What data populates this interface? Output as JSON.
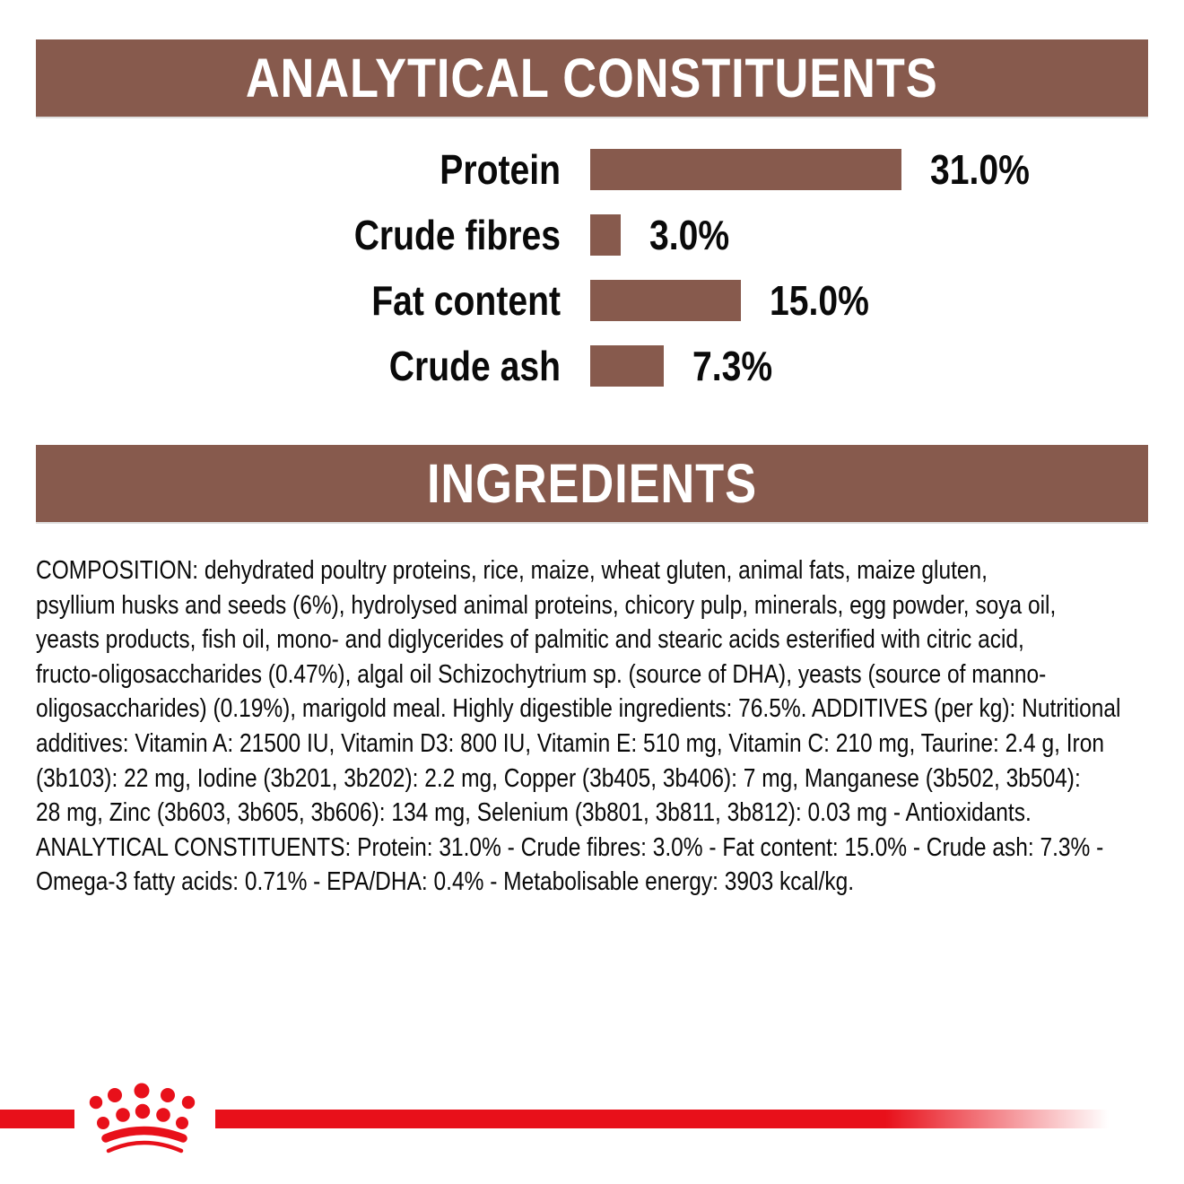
{
  "colors": {
    "background": "#ffffff",
    "brown": "#875a4d",
    "red": "#e8101a",
    "text": "#0a0a0a",
    "header_text": "#ffffff"
  },
  "analytical_section": {
    "title": "ANALYTICAL CONSTITUENTS"
  },
  "ingredients_section": {
    "title": "INGREDIENTS"
  },
  "chart_data": {
    "type": "bar",
    "orientation": "horizontal",
    "title": "ANALYTICAL CONSTITUENTS",
    "categories": [
      "Protein",
      "Crude fibres",
      "Fat content",
      "Crude ash"
    ],
    "values": [
      31.0,
      3.0,
      15.0,
      7.3
    ],
    "value_labels": [
      "31.0%",
      "3.0%",
      "15.0%",
      "7.3%"
    ],
    "unit": "percent",
    "bar_color": "#875a4d",
    "xlim": [
      0,
      31
    ],
    "grid": false,
    "legend": false
  },
  "composition": {
    "lines": [
      "COMPOSITION: dehydrated poultry proteins, rice, maize, wheat gluten, animal fats, maize gluten,",
      "psyllium husks and seeds (6%), hydrolysed animal proteins, chicory pulp, minerals, egg powder, soya oil,",
      "yeasts products, fish oil, mono- and diglycerides of palmitic and stearic acids esterified with citric acid,",
      "fructo-oligosaccharides (0.47%), algal oil Schizochytrium sp. (source of DHA), yeasts (source of manno-",
      "oligosaccharides) (0.19%), marigold meal. Highly digestible ingredients: 76.5%. ADDITIVES (per kg): Nutritional",
      "additives: Vitamin A: 21500 IU, Vitamin D3: 800 IU, Vitamin E: 510 mg, Vitamin C: 210 mg, Taurine: 2.4 g, Iron",
      "(3b103): 22 mg, Iodine (3b201, 3b202): 2.2 mg, Copper (3b405, 3b406): 7 mg, Manganese (3b502, 3b504):",
      "28 mg, Zinc (3b603, 3b605, 3b606): 134 mg, Selenium (3b801, 3b811, 3b812): 0.03 mg - Antioxidants.",
      "ANALYTICAL CONSTITUENTS: Protein: 31.0% - Crude fibres: 3.0% - Fat content: 15.0% - Crude ash: 7.3% -",
      "Omega-3 fatty acids: 0.71% - EPA/DHA: 0.4% - Metabolisable energy: 3903 kcal/kg."
    ]
  },
  "footer": {
    "logo": "royal-canin-crown"
  }
}
